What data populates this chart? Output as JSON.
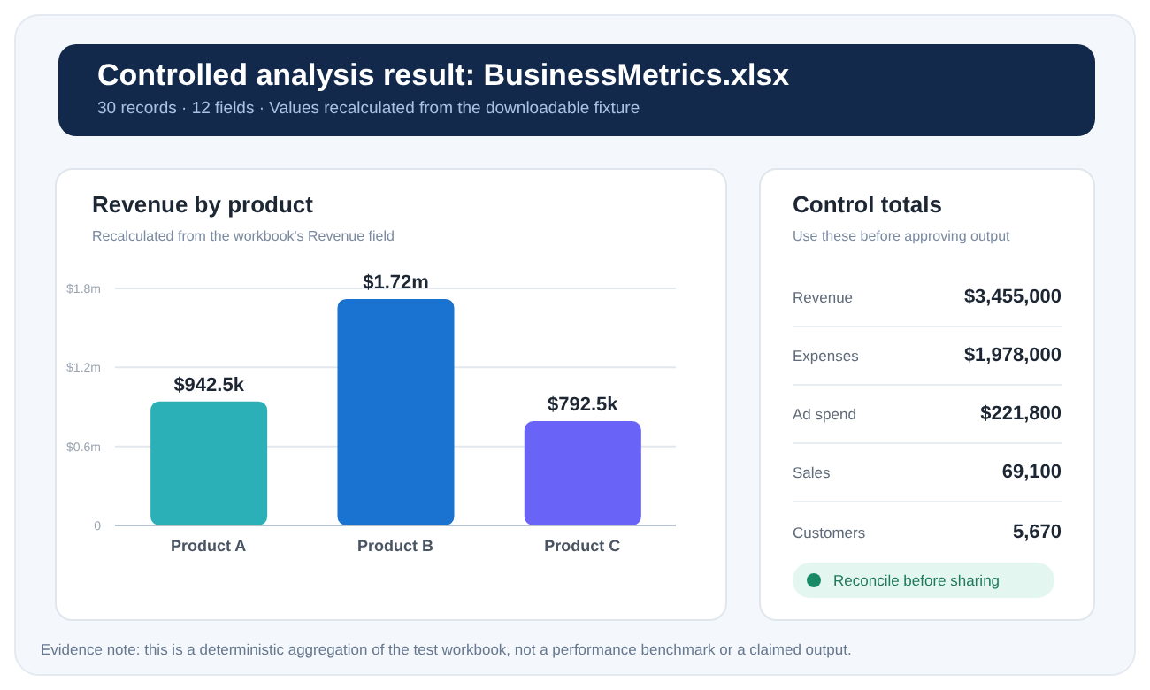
{
  "chart_data": [
    {
      "type": "other",
      "title": "Controlled analysis result: BusinessMetrics.xlsx",
      "subtitle": "30 records · 12 fields · Values recalculated from the downloadable fixture",
      "annotations": [
        "Evidence note: this is a deterministic aggregation of the test workbook, not a performance benchmark or a claimed output."
      ]
    },
    {
      "type": "bar",
      "title": "Revenue by product",
      "subtitle": "Recalculated from the workbook's Revenue field",
      "categories": [
        "Product A",
        "Product B",
        "Product C"
      ],
      "values": [
        942500,
        1720000,
        792500
      ],
      "colors": [
        "#2bb0b8",
        "#1a73d1",
        "#6a63f7"
      ],
      "value_labels": [
        "$942.5k",
        "$1.72m",
        "$792.5k"
      ],
      "ylim": [
        0,
        1800000
      ],
      "yticks": [
        {
          "value": 0,
          "label": "0"
        },
        {
          "value": 600000,
          "label": "$0.6m"
        },
        {
          "value": 1200000,
          "label": "$1.2m"
        },
        {
          "value": 1800000,
          "label": "$1.8m"
        }
      ],
      "grid": "y",
      "legend": false
    },
    {
      "type": "other",
      "title": "Control totals",
      "subtitle": "Use these before approving output",
      "categories": [
        "Revenue",
        "Expenses",
        "Ad spend",
        "Sales",
        "Customers"
      ],
      "value_labels": [
        "$3,455,000",
        "$1,978,000",
        "$221,800",
        "69,100",
        "5,670"
      ],
      "annotations": [
        "Reconcile before sharing"
      ]
    }
  ]
}
